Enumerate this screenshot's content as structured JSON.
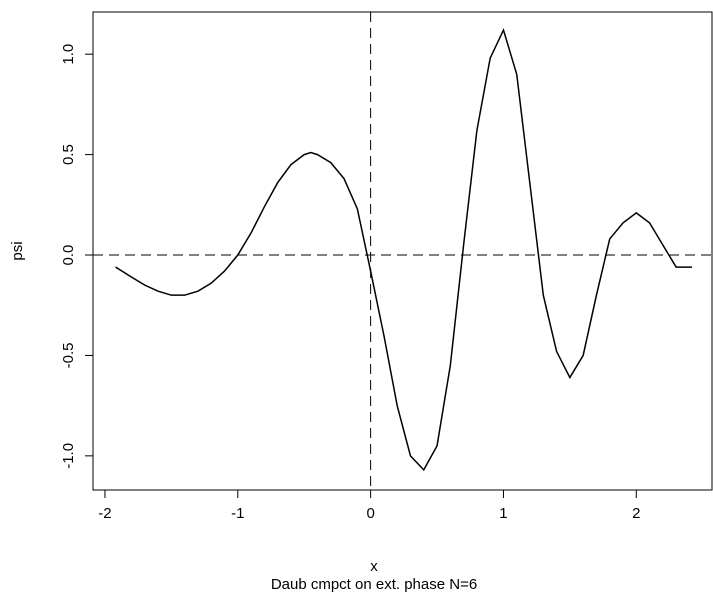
{
  "chart_data": {
    "type": "line",
    "xlabel": "x",
    "ylabel": "psi",
    "subtitle": "Daub cmpct on ext. phase N=6",
    "x": [
      -1.92,
      -1.8,
      -1.7,
      -1.6,
      -1.5,
      -1.4,
      -1.3,
      -1.2,
      -1.1,
      -1.0,
      -0.9,
      -0.8,
      -0.7,
      -0.6,
      -0.5,
      -0.45,
      -0.4,
      -0.3,
      -0.2,
      -0.1,
      0.0,
      0.1,
      0.2,
      0.3,
      0.4,
      0.5,
      0.6,
      0.7,
      0.8,
      0.9,
      1.0,
      1.1,
      1.2,
      1.3,
      1.4,
      1.5,
      1.6,
      1.7,
      1.8,
      1.9,
      2.0,
      2.1,
      2.2,
      2.3,
      2.42
    ],
    "series": [
      {
        "color": "#000000",
        "values": [
          -0.06,
          -0.11,
          -0.15,
          -0.18,
          -0.2,
          -0.2,
          -0.18,
          -0.14,
          -0.08,
          0.0,
          0.11,
          0.24,
          0.36,
          0.45,
          0.5,
          0.51,
          0.5,
          0.46,
          0.38,
          0.23,
          -0.08,
          -0.4,
          -0.75,
          -1.0,
          -1.07,
          -0.95,
          -0.55,
          0.05,
          0.62,
          0.98,
          1.12,
          0.9,
          0.35,
          -0.2,
          -0.48,
          -0.61,
          -0.5,
          -0.2,
          0.08,
          0.16,
          0.21,
          0.16,
          0.05,
          -0.06,
          -0.06
        ]
      }
    ],
    "xlim": [
      -2.09,
      2.57
    ],
    "ylim": [
      -1.17,
      1.21
    ],
    "xticks": [
      -2,
      -1,
      0,
      1,
      2
    ],
    "yticks": [
      {
        "value": -1,
        "label": "-1.0"
      },
      -0.5,
      {
        "value": 0,
        "label": "0.0"
      },
      0.5,
      {
        "value": 1,
        "label": "1.0"
      }
    ],
    "hline": 0,
    "vline": 0
  }
}
